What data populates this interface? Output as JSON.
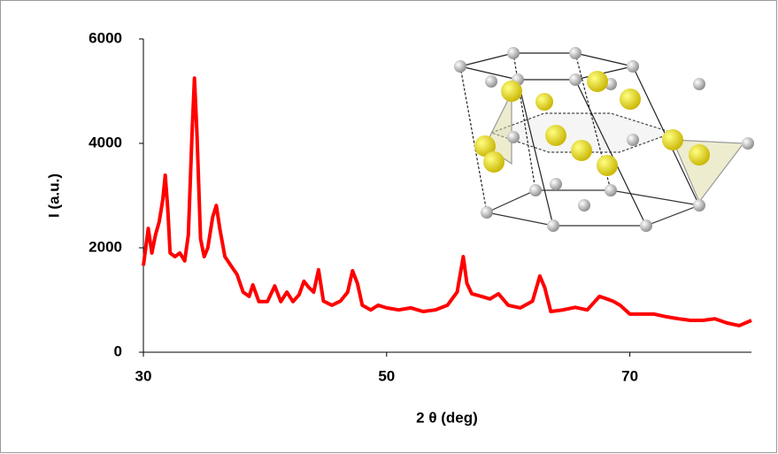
{
  "chart_data": {
    "type": "line",
    "xlabel": "2 θ (deg)",
    "ylabel": "I (a.u.)",
    "color": "#ff0000",
    "xlim": [
      30,
      80
    ],
    "ylim": [
      0,
      6000
    ],
    "xticks": [
      30,
      50,
      70
    ],
    "yticks": [
      0,
      2000,
      4000,
      6000
    ],
    "x": [
      30,
      30.4,
      30.7,
      31.0,
      31.3,
      31.6,
      31.8,
      32.0,
      32.2,
      32.6,
      33.0,
      33.4,
      33.7,
      34.0,
      34.2,
      34.4,
      34.7,
      35.0,
      35.3,
      35.7,
      36.0,
      36.3,
      36.7,
      37.2,
      37.7,
      38.2,
      38.7,
      39.0,
      39.5,
      40.2,
      40.8,
      41.3,
      41.8,
      42.3,
      42.8,
      43.2,
      43.6,
      44.0,
      44.4,
      44.8,
      45.5,
      46.2,
      46.8,
      47.2,
      47.6,
      48.0,
      48.7,
      49.3,
      50,
      51,
      52,
      53,
      54,
      55,
      55.8,
      56.3,
      56.6,
      57.0,
      57.8,
      58.5,
      59.2,
      60,
      61,
      62,
      62.6,
      63.0,
      63.5,
      64.5,
      65.5,
      66.5,
      67.5,
      68.0,
      68.6,
      69.2,
      70,
      71,
      72,
      73,
      74,
      75,
      76,
      77,
      78,
      79,
      80
    ],
    "values": [
      1660,
      2370,
      1900,
      2250,
      2500,
      2930,
      3390,
      2760,
      1900,
      1830,
      1900,
      1750,
      2250,
      4200,
      5250,
      4200,
      2170,
      1830,
      2000,
      2590,
      2810,
      2340,
      1830,
      1660,
      1490,
      1150,
      1070,
      1290,
      970,
      970,
      1270,
      970,
      1150,
      970,
      1100,
      1360,
      1240,
      1150,
      1580,
      980,
      900,
      980,
      1150,
      1560,
      1320,
      900,
      810,
      900,
      850,
      810,
      850,
      780,
      810,
      900,
      1150,
      1830,
      1320,
      1120,
      1070,
      1020,
      1120,
      900,
      850,
      980,
      1460,
      1240,
      780,
      810,
      860,
      810,
      1070,
      1030,
      980,
      900,
      730,
      730,
      730,
      680,
      640,
      610,
      610,
      640,
      560,
      510,
      610
    ]
  }
}
